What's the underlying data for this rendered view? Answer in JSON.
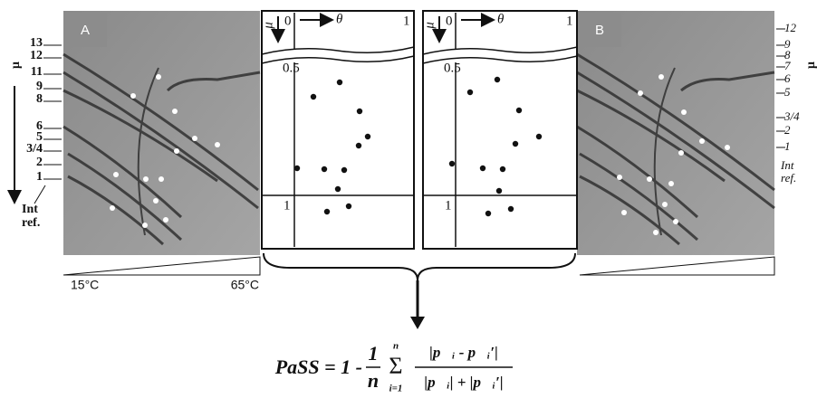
{
  "panel_a": {
    "label": "A",
    "mu": "μ",
    "ticks": [
      "13",
      "12",
      "11",
      "9",
      "8",
      "6",
      "5",
      "3/4",
      "2",
      "1"
    ],
    "ref": [
      "Int",
      "ref."
    ]
  },
  "panel_b": {
    "label": "B",
    "mu": "μ",
    "ticks": [
      "12",
      "9",
      "8",
      "7",
      "6",
      "5",
      "3/4",
      "2",
      "1"
    ],
    "ref": [
      "Int",
      "ref."
    ]
  },
  "temperature": {
    "low": "15°C",
    "high": "65°C"
  },
  "schematic": {
    "mu": "μ",
    "zero": "0",
    "theta": "θ",
    "one_top": "1",
    "half": "0.5",
    "one_left": "1"
  },
  "formula": {
    "lhs": "PaSS = 1 -",
    "num": "1",
    "den": "n",
    "sum": "Σ",
    "upper": "n",
    "lower": "i=1",
    "numerator": "|p⃗ᵢ - p⃗ᵢ′|",
    "denominator": "|p⃗ᵢ| + |p⃗ᵢ′|"
  }
}
